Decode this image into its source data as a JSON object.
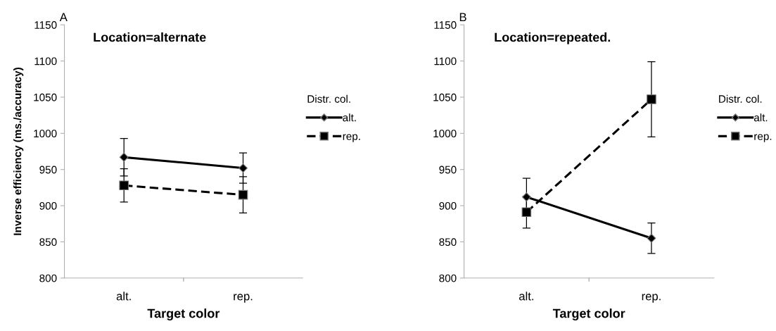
{
  "chart_data": [
    {
      "type": "line",
      "title": "Location=alternate",
      "annotations": [
        "A"
      ],
      "xlabel": "Target color",
      "ylabel": "Inverse efficiency (ms./accuracy)",
      "legend_title": "Distr. col.",
      "legend": "right",
      "categories": [
        "alt.",
        "rep."
      ],
      "ylim": [
        800,
        1150
      ],
      "yticks": [
        800,
        850,
        900,
        950,
        1000,
        1050,
        1100,
        1150
      ],
      "grid": false,
      "series": [
        {
          "name": "alt.",
          "color": "#000000",
          "values": [
            967,
            952
          ],
          "errors": [
            26,
            21
          ],
          "marker": "diamond",
          "line_style": "solid"
        },
        {
          "name": "rep.",
          "color": "#000000",
          "values": [
            928,
            915
          ],
          "errors": [
            23,
            25
          ],
          "marker": "square",
          "line_style": "dashed"
        }
      ]
    },
    {
      "type": "line",
      "title": "Location=repeated.",
      "annotations": [
        "B"
      ],
      "xlabel": "Target color",
      "legend_title": "Distr. col.",
      "legend": "right",
      "categories": [
        "alt.",
        "rep."
      ],
      "ylim": [
        800,
        1150
      ],
      "yticks": [
        800,
        850,
        900,
        950,
        1000,
        1050,
        1100,
        1150
      ],
      "grid": false,
      "series": [
        {
          "name": "alt.",
          "color": "#000000",
          "values": [
            912,
            855
          ],
          "errors": [
            26,
            21
          ],
          "marker": "diamond",
          "line_style": "solid"
        },
        {
          "name": "rep.",
          "color": "#000000",
          "values": [
            891,
            1047
          ],
          "errors": [
            22,
            52
          ],
          "marker": "square",
          "line_style": "dashed"
        }
      ]
    }
  ]
}
